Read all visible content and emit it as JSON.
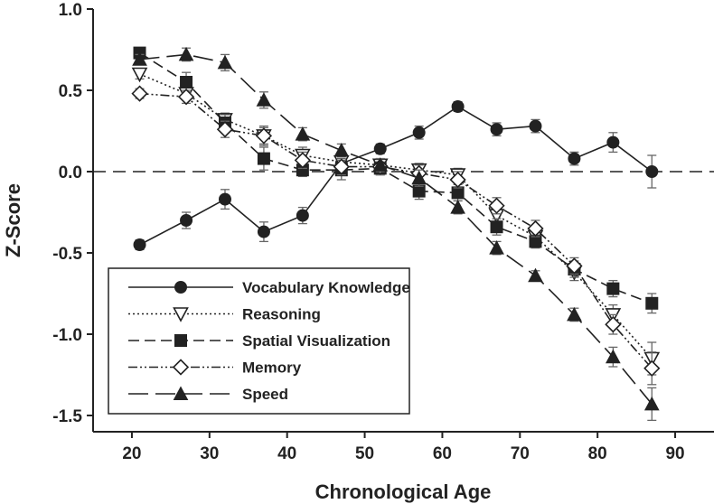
{
  "chart_data": {
    "type": "line",
    "title": "",
    "xlabel": "Chronological Age",
    "ylabel": "Z-Score",
    "xlim": [
      15,
      95
    ],
    "ylim": [
      -1.6,
      1.0
    ],
    "xticks": [
      "20",
      "30",
      "40",
      "50",
      "60",
      "70",
      "80",
      "90"
    ],
    "yticks": [
      "1.0",
      "0.5",
      "0.0",
      "-0.5",
      "-1.0",
      "-1.5"
    ],
    "x": [
      21,
      27,
      32,
      37,
      42,
      47,
      52,
      57,
      62,
      67,
      72,
      77,
      82,
      87
    ],
    "reference_line": {
      "y": 0.0,
      "style": "dashed"
    },
    "grid": false,
    "legend_position": "bottom-left",
    "series": [
      {
        "name": "Vocabulary Knowledge",
        "marker": "circle-filled",
        "line": "solid",
        "values": [
          -0.45,
          -0.3,
          -0.17,
          -0.37,
          -0.27,
          0.05,
          0.14,
          0.24,
          0.4,
          0.26,
          0.28,
          0.08,
          0.18,
          0.0
        ],
        "errors": [
          0.03,
          0.05,
          0.06,
          0.06,
          0.05,
          0.04,
          0.03,
          0.04,
          0.03,
          0.04,
          0.04,
          0.04,
          0.06,
          0.1
        ]
      },
      {
        "name": "Reasoning",
        "marker": "triangle-down-open",
        "line": "dotted",
        "values": [
          0.6,
          0.48,
          0.32,
          0.22,
          0.1,
          0.06,
          0.04,
          0.01,
          -0.02,
          -0.27,
          -0.4,
          -0.62,
          -0.88,
          -1.15
        ],
        "errors": [
          0.03,
          0.04,
          0.04,
          0.05,
          0.05,
          0.04,
          0.04,
          0.04,
          0.04,
          0.04,
          0.05,
          0.05,
          0.06,
          0.1
        ]
      },
      {
        "name": "Spatial Visualization",
        "marker": "square-filled",
        "line": "dashed",
        "values": [
          0.73,
          0.55,
          0.3,
          0.08,
          0.01,
          0.01,
          0.02,
          -0.12,
          -0.13,
          -0.34,
          -0.43,
          -0.6,
          -0.72,
          -0.81
        ],
        "errors": [
          0.03,
          0.06,
          0.05,
          0.07,
          0.04,
          0.06,
          0.04,
          0.05,
          0.05,
          0.05,
          0.04,
          0.05,
          0.05,
          0.06
        ]
      },
      {
        "name": "Memory",
        "marker": "diamond-open",
        "line": "dash-dot-dot",
        "values": [
          0.48,
          0.46,
          0.26,
          0.22,
          0.07,
          0.03,
          0.03,
          -0.01,
          -0.05,
          -0.21,
          -0.35,
          -0.58,
          -0.94,
          -1.21
        ],
        "errors": [
          0.03,
          0.04,
          0.05,
          0.06,
          0.05,
          0.05,
          0.05,
          0.05,
          0.05,
          0.05,
          0.05,
          0.05,
          0.06,
          0.1
        ]
      },
      {
        "name": "Speed",
        "marker": "triangle-up-filled",
        "line": "long-dash",
        "values": [
          0.69,
          0.72,
          0.67,
          0.44,
          0.23,
          0.13,
          0.04,
          -0.04,
          -0.22,
          -0.47,
          -0.64,
          -0.88,
          -1.14,
          -1.43
        ],
        "errors": [
          0.03,
          0.04,
          0.05,
          0.05,
          0.04,
          0.04,
          0.04,
          0.05,
          0.04,
          0.04,
          0.03,
          0.04,
          0.06,
          0.1
        ]
      }
    ]
  }
}
